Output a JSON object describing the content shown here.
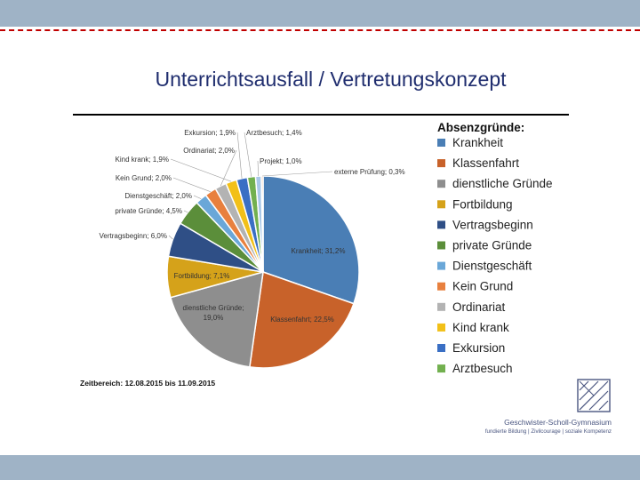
{
  "slide": {
    "title": "Unterrichtsausfall / Vertretungskonzept",
    "period": "Zeitbereich: 12.08.2015 bis 11.09.2015",
    "school_name": "Geschwister-Scholl-Gymnasium",
    "school_tagline": "fundierte Bildung | Zivilcourage | soziale Kompetenz",
    "logo_icon": "school-logo-icon"
  },
  "chart_data": {
    "type": "pie",
    "legend_title": "Absenzgründe:",
    "legend_position": "right",
    "slices": [
      {
        "name": "Krankheit",
        "value": 31.2,
        "label": "Krankheit; 31,2%",
        "color": "#4a7eb5"
      },
      {
        "name": "Klassenfahrt",
        "value": 22.5,
        "label": "Klassenfahrt; 22,5%",
        "color": "#c8622a"
      },
      {
        "name": "dienstliche Gründe",
        "value": 19.0,
        "label": "dienstliche Gründe; 19,0%",
        "color": "#8e8e8e"
      },
      {
        "name": "Fortbildung",
        "value": 7.1,
        "label": "Fortbildung; 7,1%",
        "color": "#d5a21a"
      },
      {
        "name": "Vertragsbeginn",
        "value": 6.0,
        "label": "Vertragsbeginn; 6,0%",
        "color": "#2f4f86"
      },
      {
        "name": "private Gründe",
        "value": 4.5,
        "label": "private Gründe; 4,5%",
        "color": "#5b8e3a"
      },
      {
        "name": "Dienstgeschäft",
        "value": 2.0,
        "label": "Dienstgeschäft; 2,0%",
        "color": "#6aa7d8"
      },
      {
        "name": "Kein Grund",
        "value": 2.0,
        "label": "Kein Grund; 2,0%",
        "color": "#e8803e"
      },
      {
        "name": "Ordinariat",
        "value": 2.0,
        "label": "Ordinariat; 2,0%",
        "color": "#b3b3b3"
      },
      {
        "name": "Kind krank",
        "value": 1.9,
        "label": "Kind krank; 1,9%",
        "color": "#f2c018"
      },
      {
        "name": "Exkursion",
        "value": 1.9,
        "label": "Exkursion; 1,9%",
        "color": "#3a6fc4"
      },
      {
        "name": "Arztbesuch",
        "value": 1.4,
        "label": "Arztbesuch; 1,4%",
        "color": "#72b04f"
      },
      {
        "name": "Projekt",
        "value": 1.0,
        "label": "Projekt; 1,0%",
        "color": "#a9c8e8"
      },
      {
        "name": "externe Prüfung",
        "value": 0.3,
        "label": "externe Prüfung; 0,3%",
        "color": "#f0b890"
      }
    ],
    "legend_entries": [
      "Krankheit",
      "Klassenfahrt",
      "dienstliche Gründe",
      "Fortbildung",
      "Vertragsbeginn",
      "private Gründe",
      "Dienstgeschäft",
      "Kein Grund",
      "Ordinariat",
      "Kind krank",
      "Exkursion",
      "Arztbesuch"
    ]
  }
}
